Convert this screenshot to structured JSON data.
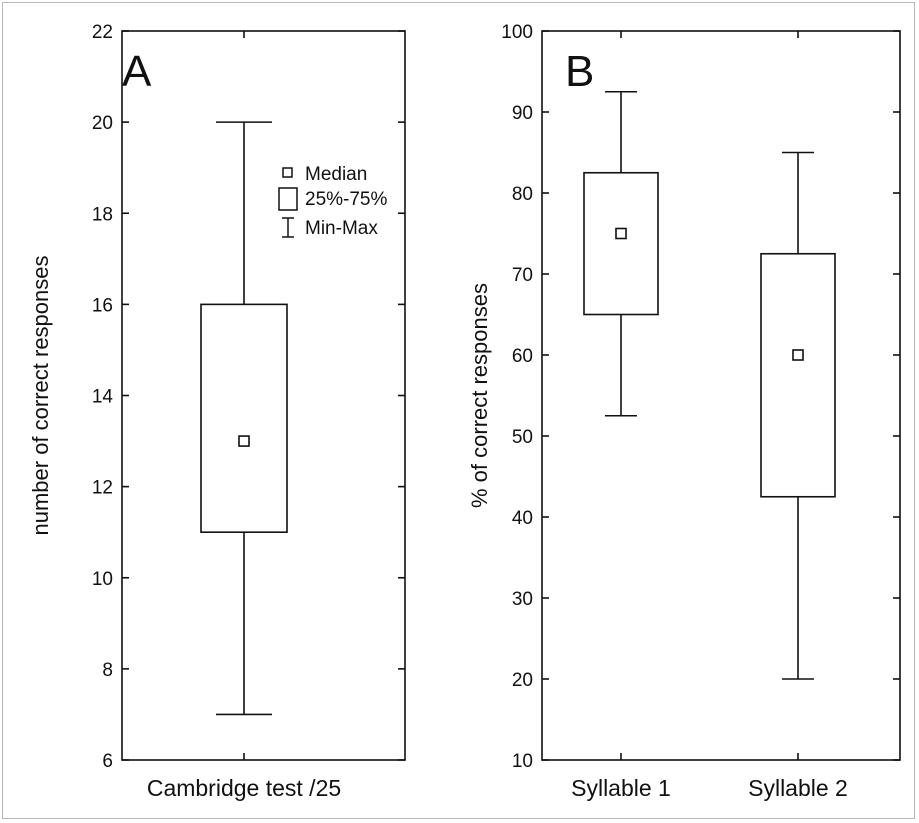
{
  "chart_data": [
    {
      "type": "box",
      "panel_label": "A",
      "ylabel": "number of correct responses",
      "ylim": [
        6,
        22
      ],
      "yticks": [
        6,
        8,
        10,
        12,
        14,
        16,
        18,
        20,
        22
      ],
      "categories": [
        "Cambridge test /25"
      ],
      "boxes": [
        {
          "category": "Cambridge test /25",
          "min": 7,
          "q1": 11,
          "median": 13,
          "q3": 16,
          "max": 20
        }
      ],
      "legend": {
        "placement": "top-right",
        "entries": [
          {
            "symbol": "small-square",
            "label": "Median"
          },
          {
            "symbol": "box",
            "label": "25%-75%"
          },
          {
            "symbol": "whisker",
            "label": "Min-Max"
          }
        ]
      },
      "grid": false
    },
    {
      "type": "box",
      "panel_label": "B",
      "ylabel": "% of correct responses",
      "ylim": [
        10,
        100
      ],
      "yticks": [
        10,
        20,
        30,
        40,
        50,
        60,
        70,
        80,
        90,
        100
      ],
      "categories": [
        "Syllable 1",
        "Syllable 2"
      ],
      "boxes": [
        {
          "category": "Syllable 1",
          "min": 52.5,
          "q1": 65,
          "median": 75,
          "q3": 82.5,
          "max": 92.5
        },
        {
          "category": "Syllable 2",
          "min": 20,
          "q1": 42.5,
          "median": 60,
          "q3": 72.5,
          "max": 85
        }
      ],
      "grid": false
    }
  ]
}
